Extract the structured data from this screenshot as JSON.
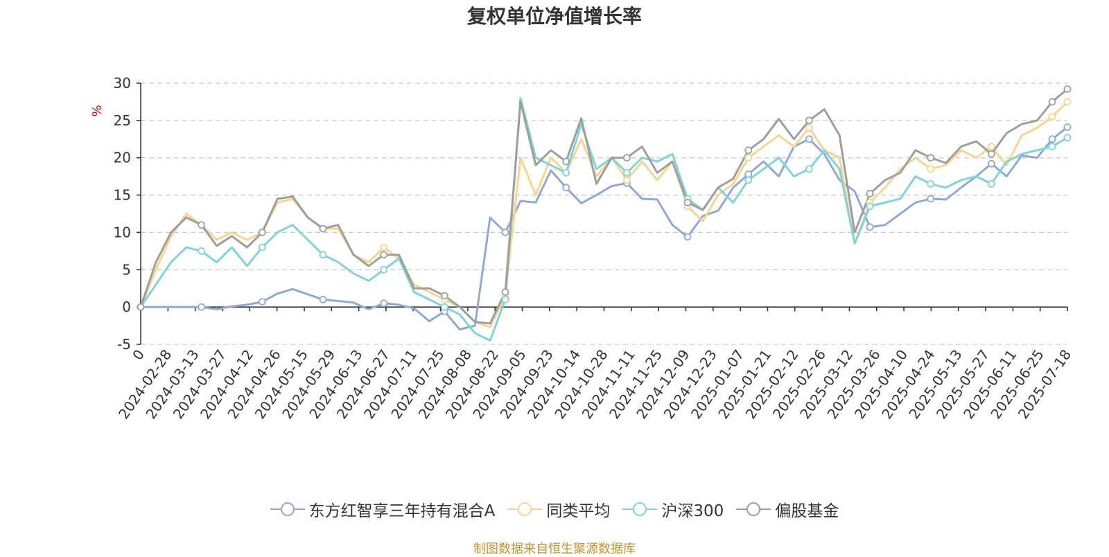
{
  "chart_data": {
    "type": "line",
    "title": "复权单位净值增长率",
    "ylabel": "%",
    "xlabel": "",
    "ylim": [
      -5,
      30
    ],
    "yticks": [
      -5,
      0,
      5,
      10,
      15,
      20,
      25,
      30
    ],
    "x_tick_labels": [
      "0",
      "2024-02-28",
      "2024-03-13",
      "2024-03-27",
      "2024-04-12",
      "2024-04-26",
      "2024-05-15",
      "2024-05-29",
      "2024-06-13",
      "2024-06-27",
      "2024-07-11",
      "2024-07-25",
      "2024-08-08",
      "2024-08-22",
      "2024-09-05",
      "2024-09-23",
      "2024-10-14",
      "2024-10-28",
      "2024-11-11",
      "2024-11-25",
      "2024-12-09",
      "2024-12-23",
      "2025-01-07",
      "2025-01-21",
      "2025-02-12",
      "2025-02-26",
      "2025-03-12",
      "2025-03-26",
      "2025-04-10",
      "2025-04-24",
      "2025-05-13",
      "2025-05-27",
      "2025-06-11",
      "2025-06-25",
      "2025-07-18"
    ],
    "grid": true,
    "legend_position": "bottom",
    "series": [
      {
        "name": "东方红智享三年持有混合A",
        "color": "#8fa9d6",
        "values": [
          0,
          0,
          0,
          0,
          0,
          -0.3,
          0.1,
          0.3,
          0.7,
          1.8,
          2.4,
          1.7,
          1.0,
          0.8,
          0.6,
          -0.3,
          0.5,
          0.3,
          -0.2,
          -1.9,
          -0.6,
          -3.0,
          -2.5,
          12.0,
          10.0,
          14.2,
          14.0,
          18.3,
          16.0,
          13.9,
          15.0,
          16.2,
          16.6,
          14.5,
          14.4,
          11.0,
          9.4,
          12.2,
          12.9,
          16.0,
          17.8,
          19.5,
          17.5,
          21.5,
          22.5,
          20.5,
          17.0,
          15.5,
          10.7,
          11.0,
          12.5,
          14.0,
          14.5,
          14.4,
          16.0,
          17.5,
          19.2,
          17.5,
          20.3,
          20.0,
          22.5,
          24.1
        ]
      },
      {
        "name": "同类平均",
        "color": "#f9d48f",
        "values": [
          0,
          5.0,
          9.5,
          12.5,
          11.0,
          9.0,
          10.0,
          9.0,
          10.0,
          14.0,
          14.5,
          12.0,
          10.5,
          10.5,
          7.0,
          6.0,
          8.0,
          6.5,
          3.0,
          2.0,
          1.0,
          0,
          -2.0,
          -2.7,
          1.5,
          20.0,
          15.0,
          20.0,
          18.0,
          22.5,
          17.5,
          20.0,
          17.0,
          19.5,
          17.0,
          19.5,
          13.5,
          11.5,
          15.0,
          16.5,
          20.0,
          21.5,
          23.0,
          21.5,
          24.0,
          21.0,
          20.0,
          8.5,
          14.0,
          16.0,
          18.5,
          20.0,
          18.5,
          19.0,
          21.0,
          20.0,
          21.5,
          19.0,
          23.0,
          24.0,
          25.5,
          27.5
        ]
      },
      {
        "name": "沪深300",
        "color": "#7fd3d9",
        "values": [
          0,
          3.0,
          6.0,
          8.0,
          7.5,
          6.0,
          8.0,
          5.5,
          8.0,
          10.0,
          11.0,
          9.0,
          7.0,
          6.0,
          4.5,
          3.5,
          5.0,
          6.5,
          2.0,
          1.0,
          0,
          -1.0,
          -3.5,
          -4.5,
          1.0,
          28.0,
          20.0,
          19.0,
          18.0,
          24.5,
          18.5,
          20.0,
          18.0,
          20.0,
          19.5,
          20.5,
          14.5,
          13.0,
          16.0,
          14.0,
          17.0,
          18.5,
          20.0,
          17.5,
          18.5,
          21.0,
          18.5,
          8.5,
          13.5,
          14.0,
          14.5,
          17.5,
          16.5,
          16.0,
          17.0,
          17.5,
          16.5,
          19.5,
          20.5,
          21.0,
          21.5,
          22.7
        ]
      },
      {
        "name": "偏股基金",
        "color": "#9e9e9e",
        "values": [
          0,
          6.0,
          10.0,
          12.0,
          11.0,
          8.2,
          9.5,
          8.0,
          10.0,
          14.5,
          14.8,
          12.0,
          10.5,
          11.0,
          7.0,
          5.5,
          7.0,
          7.0,
          2.5,
          2.5,
          1.5,
          0,
          -2.0,
          -2.2,
          2.0,
          27.5,
          19.0,
          21.0,
          19.5,
          25.3,
          16.5,
          20.0,
          20.0,
          21.5,
          18.0,
          19.5,
          14.0,
          13.0,
          16.0,
          17.2,
          21.0,
          22.5,
          25.2,
          22.5,
          25.0,
          26.5,
          23.0,
          10.0,
          15.2,
          17.0,
          18.0,
          21.0,
          20.0,
          19.3,
          21.5,
          22.2,
          20.5,
          23.3,
          24.5,
          25.0,
          27.5,
          29.2
        ]
      }
    ]
  },
  "legend": [
    {
      "label": "东方红智享三年持有混合A",
      "color": "#8fa9d6"
    },
    {
      "label": "同类平均",
      "color": "#f9d48f"
    },
    {
      "label": "沪深300",
      "color": "#7fd3d9"
    },
    {
      "label": "偏股基金",
      "color": "#9e9e9e"
    }
  ],
  "source_note": "制图数据来自恒生聚源数据库"
}
